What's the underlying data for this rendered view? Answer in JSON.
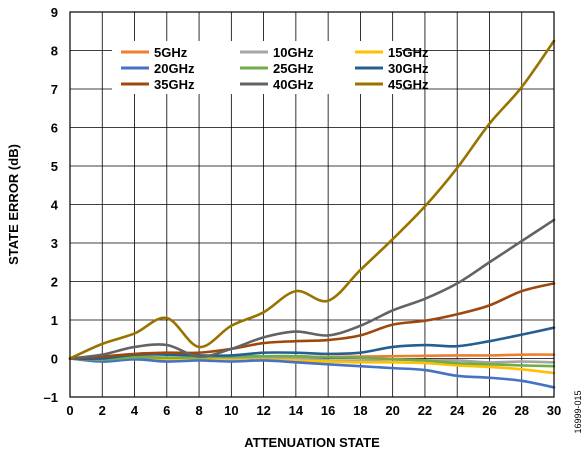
{
  "chart_data": {
    "type": "line",
    "title": "",
    "xlabel": "ATTENUATION STATE",
    "ylabel": "STATE ERROR (dB)",
    "xlim": [
      0,
      30
    ],
    "ylim": [
      -1,
      9
    ],
    "xticks": [
      "0",
      "2",
      "4",
      "6",
      "8",
      "10",
      "12",
      "14",
      "16",
      "18",
      "20",
      "22",
      "24",
      "26",
      "28",
      "30"
    ],
    "yticks": [
      "–1",
      "0",
      "1",
      "2",
      "3",
      "4",
      "5",
      "6",
      "7",
      "8",
      "9"
    ],
    "grid": true,
    "legend_position": "top-left",
    "figure_id": "16999-015",
    "x": [
      0,
      2,
      4,
      6,
      8,
      10,
      12,
      14,
      16,
      18,
      20,
      22,
      24,
      26,
      28,
      30
    ],
    "series": [
      {
        "name": "5GHz",
        "color": "#ED7D31",
        "values": [
          0,
          0.0,
          0.05,
          0.02,
          0.02,
          0.03,
          0.04,
          0.05,
          0.04,
          0.05,
          0.06,
          0.07,
          0.08,
          0.08,
          0.1,
          0.1
        ]
      },
      {
        "name": "10GHz",
        "color": "#A5A5A5",
        "values": [
          0,
          -0.02,
          0.0,
          -0.02,
          0.0,
          0.0,
          0.02,
          0.0,
          -0.05,
          -0.05,
          -0.02,
          -0.05,
          -0.05,
          -0.1,
          -0.08,
          -0.1
        ]
      },
      {
        "name": "15GHz",
        "color": "#FFC000",
        "values": [
          0,
          -0.03,
          0.0,
          -0.03,
          -0.02,
          -0.05,
          -0.03,
          -0.05,
          -0.08,
          -0.1,
          -0.1,
          -0.12,
          -0.18,
          -0.22,
          -0.28,
          -0.38
        ]
      },
      {
        "name": "20GHz",
        "color": "#4472C4",
        "values": [
          0,
          -0.08,
          -0.02,
          -0.08,
          -0.05,
          -0.08,
          -0.05,
          -0.1,
          -0.15,
          -0.2,
          -0.25,
          -0.3,
          -0.45,
          -0.5,
          -0.58,
          -0.75
        ]
      },
      {
        "name": "25GHz",
        "color": "#70AD47",
        "values": [
          0,
          -0.03,
          0.03,
          0.02,
          0.03,
          0.05,
          0.06,
          0.06,
          0.03,
          0.02,
          -0.02,
          -0.05,
          -0.12,
          -0.15,
          -0.18,
          -0.2
        ]
      },
      {
        "name": "30GHz",
        "color": "#255E91",
        "values": [
          0,
          0.0,
          0.1,
          0.1,
          0.08,
          0.08,
          0.15,
          0.15,
          0.12,
          0.15,
          0.3,
          0.35,
          0.32,
          0.45,
          0.62,
          0.8
        ]
      },
      {
        "name": "35GHz",
        "color": "#9E480E",
        "values": [
          0,
          0.05,
          0.12,
          0.15,
          0.15,
          0.25,
          0.4,
          0.45,
          0.48,
          0.6,
          0.88,
          0.98,
          1.15,
          1.38,
          1.75,
          1.95
        ]
      },
      {
        "name": "40GHz",
        "color": "#636363",
        "values": [
          0,
          0.1,
          0.3,
          0.35,
          0.05,
          0.25,
          0.55,
          0.7,
          0.6,
          0.85,
          1.25,
          1.55,
          1.95,
          2.5,
          3.05,
          3.6
        ]
      },
      {
        "name": "45GHz",
        "color": "#997300",
        "values": [
          0,
          0.38,
          0.65,
          1.05,
          0.3,
          0.85,
          1.2,
          1.75,
          1.5,
          2.3,
          3.1,
          3.95,
          4.95,
          6.1,
          7.05,
          8.25
        ]
      }
    ]
  }
}
